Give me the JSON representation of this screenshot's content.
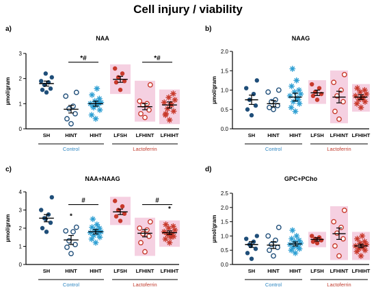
{
  "figure_title": "Cell injury / viability",
  "colors": {
    "sh": "#1f4e79",
    "hint": "#1f4e79",
    "hiht": "#2e9fd3",
    "lfsh": "#c8392b",
    "lfhint": "#c8392b",
    "lfhiht": "#c8392b",
    "pink_bg": "#f5d0e1",
    "control_label": "#2e86c1",
    "lactoferrin_label": "#c0392b"
  },
  "chart_data": [
    {
      "panel": "a)",
      "type": "scatter",
      "title": "NAA",
      "ylabel": "µmol/gram",
      "ylim": [
        0,
        3
      ],
      "yticks": [
        "0",
        "1",
        "2",
        "3"
      ],
      "categories": [
        "SH",
        "HINT",
        "HIHT",
        "LFSH",
        "LFHINT",
        "LFHIHT"
      ],
      "groups": [
        {
          "name": "SH",
          "mean": 1.8,
          "sem": 0.1,
          "points": [
            1.45,
            1.55,
            1.6,
            1.75,
            1.85,
            1.9,
            2.05,
            2.2
          ],
          "marker": "filled-circle",
          "color_key": "sh",
          "bg": false
        },
        {
          "name": "HINT",
          "mean": 0.78,
          "sem": 0.15,
          "points": [
            0.2,
            0.4,
            0.6,
            0.8,
            0.9,
            1.3,
            1.45
          ],
          "marker": "open-circle",
          "color_key": "hint",
          "bg": false
        },
        {
          "name": "HIHT",
          "mean": 1.0,
          "sem": 0.1,
          "points": [
            0.4,
            0.55,
            0.75,
            0.85,
            0.95,
            1.0,
            1.05,
            1.1,
            1.2,
            1.35,
            1.6,
            0.9,
            1.05
          ],
          "marker": "asterisk",
          "color_key": "hiht",
          "bg": false
        },
        {
          "name": "LFSH",
          "mean": 1.97,
          "sem": 0.12,
          "points": [
            1.55,
            1.85,
            1.9,
            2.05,
            2.2,
            2.4
          ],
          "marker": "filled-circle",
          "color_key": "lfsh",
          "bg": true
        },
        {
          "name": "LFHINT",
          "mean": 0.88,
          "sem": 0.12,
          "points": [
            0.45,
            0.6,
            0.75,
            0.95,
            1.0,
            1.1,
            1.75
          ],
          "marker": "open-circle",
          "color_key": "lfhint",
          "bg": true
        },
        {
          "name": "LFHIHT",
          "mean": 0.95,
          "sem": 0.12,
          "points": [
            0.35,
            0.55,
            0.7,
            0.8,
            0.95,
            1.05,
            1.15,
            1.25,
            1.4,
            0.6,
            1.0
          ],
          "marker": "asterisk",
          "color_key": "lfhiht",
          "bg": true
        }
      ],
      "comparison_bars": [
        {
          "from": 1,
          "to": 2,
          "y": 2.65,
          "label": "*#"
        },
        {
          "from": 4,
          "to": 5,
          "y": 2.65,
          "label": "*#"
        }
      ],
      "star_marks": [],
      "group_labels": [
        {
          "text": "Control",
          "from": 0,
          "to": 2,
          "color_key": "control_label"
        },
        {
          "text": "Lactoferrin",
          "from": 3,
          "to": 5,
          "color_key": "lactoferrin_label"
        }
      ]
    },
    {
      "panel": "b)",
      "type": "scatter",
      "title": "NAAG",
      "ylabel": "µmol/gram",
      "ylim": [
        0,
        2
      ],
      "yticks": [
        "0.0",
        "0.5",
        "1.0",
        "1.5",
        "2.0"
      ],
      "categories": [
        "SH",
        "HINT",
        "HIHT",
        "LFSH",
        "LFHINT",
        "LFHIHT"
      ],
      "groups": [
        {
          "name": "SH",
          "mean": 0.75,
          "sem": 0.12,
          "points": [
            0.35,
            0.5,
            0.6,
            0.75,
            0.9,
            1.05,
            1.25
          ],
          "marker": "filled-circle",
          "color_key": "sh",
          "bg": false
        },
        {
          "name": "HINT",
          "mean": 0.65,
          "sem": 0.08,
          "points": [
            0.5,
            0.55,
            0.6,
            0.7,
            0.75,
            0.95,
            1.0
          ],
          "marker": "open-circle",
          "color_key": "hint",
          "bg": false
        },
        {
          "name": "HIHT",
          "mean": 0.82,
          "sem": 0.1,
          "points": [
            0.45,
            0.55,
            0.65,
            0.7,
            0.8,
            0.85,
            0.9,
            0.95,
            1.0,
            1.1,
            1.25,
            1.55,
            0.75
          ],
          "marker": "asterisk",
          "color_key": "hiht",
          "bg": false
        },
        {
          "name": "LFSH",
          "mean": 0.93,
          "sem": 0.07,
          "points": [
            0.75,
            0.85,
            0.9,
            0.95,
            1.05,
            1.15
          ],
          "marker": "filled-circle",
          "color_key": "lfsh",
          "bg": true
        },
        {
          "name": "LFHINT",
          "mean": 0.82,
          "sem": 0.15,
          "points": [
            0.25,
            0.45,
            0.7,
            0.85,
            1.0,
            1.2,
            1.4
          ],
          "marker": "open-circle",
          "color_key": "lfhint",
          "bg": true
        },
        {
          "name": "LFHIHT",
          "mean": 0.82,
          "sem": 0.06,
          "points": [
            0.55,
            0.65,
            0.7,
            0.75,
            0.8,
            0.85,
            0.9,
            0.95,
            1.0,
            1.05,
            0.8
          ],
          "marker": "asterisk",
          "color_key": "lfhiht",
          "bg": true
        }
      ],
      "comparison_bars": [],
      "star_marks": [],
      "group_labels": [
        {
          "text": "Control",
          "from": 0,
          "to": 2,
          "color_key": "control_label"
        },
        {
          "text": "Lactoferrin",
          "from": 3,
          "to": 5,
          "color_key": "lactoferrin_label"
        }
      ]
    },
    {
      "panel": "c)",
      "type": "scatter",
      "title": "NAA+NAAG",
      "ylabel": "µmol/gram",
      "ylim": [
        0,
        4
      ],
      "yticks": [
        "0",
        "1",
        "2",
        "3",
        "4"
      ],
      "categories": [
        "SH",
        "HINT",
        "HIHT",
        "LFSH",
        "LFHINT",
        "LFHIHT"
      ],
      "groups": [
        {
          "name": "SH",
          "mean": 2.55,
          "sem": 0.2,
          "points": [
            1.8,
            2.0,
            2.3,
            2.55,
            2.75,
            3.0,
            3.7,
            2.5
          ],
          "marker": "filled-circle",
          "color_key": "sh",
          "bg": false
        },
        {
          "name": "HINT",
          "mean": 1.35,
          "sem": 0.25,
          "points": [
            0.6,
            0.95,
            1.1,
            1.3,
            1.8,
            1.85,
            2.05
          ],
          "marker": "open-circle",
          "color_key": "hint",
          "bg": false
        },
        {
          "name": "HIHT",
          "mean": 1.8,
          "sem": 0.12,
          "points": [
            1.2,
            1.4,
            1.5,
            1.6,
            1.7,
            1.75,
            1.8,
            1.9,
            2.0,
            2.05,
            2.2,
            2.5,
            1.85
          ],
          "marker": "asterisk",
          "color_key": "hiht",
          "bg": false
        },
        {
          "name": "LFSH",
          "mean": 2.9,
          "sem": 0.15,
          "points": [
            2.4,
            2.65,
            2.8,
            3.0,
            3.2,
            3.5
          ],
          "marker": "filled-circle",
          "color_key": "lfsh",
          "bg": true
        },
        {
          "name": "LFHINT",
          "mean": 1.72,
          "sem": 0.2,
          "points": [
            0.7,
            1.2,
            1.55,
            1.7,
            1.9,
            2.0,
            2.35
          ],
          "marker": "open-circle",
          "color_key": "lfhint",
          "bg": true
        },
        {
          "name": "LFHIHT",
          "mean": 1.75,
          "sem": 0.1,
          "points": [
            1.2,
            1.4,
            1.55,
            1.65,
            1.7,
            1.8,
            1.9,
            2.0,
            2.1,
            2.2,
            1.5
          ],
          "marker": "asterisk",
          "color_key": "lfhiht",
          "bg": true
        }
      ],
      "comparison_bars": [
        {
          "from": 1,
          "to": 2,
          "y": 3.3,
          "label": "#"
        },
        {
          "from": 4,
          "to": 5,
          "y": 3.3,
          "label": "#"
        }
      ],
      "star_marks": [
        {
          "index": 1,
          "y": 2.55,
          "label": "*"
        },
        {
          "index": 5,
          "y": 2.95,
          "label": "*"
        }
      ],
      "group_labels": [
        {
          "text": "Control",
          "from": 0,
          "to": 2,
          "color_key": "control_label"
        },
        {
          "text": "Lactoferrin",
          "from": 3,
          "to": 5,
          "color_key": "lactoferrin_label"
        }
      ]
    },
    {
      "panel": "d)",
      "type": "scatter",
      "title": "GPC+PCho",
      "ylabel": "µmol/gram",
      "ylim": [
        0,
        2.5
      ],
      "yticks": [
        "0.0",
        "0.5",
        "1.0",
        "1.5",
        "2.0",
        "2.5"
      ],
      "categories": [
        "SH",
        "HINT",
        "HIHT",
        "LFSH",
        "LFHINT",
        "LFHIHT"
      ],
      "groups": [
        {
          "name": "SH",
          "mean": 0.7,
          "sem": 0.1,
          "points": [
            0.2,
            0.4,
            0.55,
            0.7,
            0.8,
            0.9,
            1.0,
            0.65
          ],
          "marker": "filled-circle",
          "color_key": "sh",
          "bg": false
        },
        {
          "name": "HINT",
          "mean": 0.68,
          "sem": 0.12,
          "points": [
            0.3,
            0.5,
            0.6,
            0.7,
            0.85,
            1.0,
            1.3
          ],
          "marker": "open-circle",
          "color_key": "hint",
          "bg": false
        },
        {
          "name": "HIHT",
          "mean": 0.72,
          "sem": 0.07,
          "points": [
            0.4,
            0.5,
            0.55,
            0.6,
            0.65,
            0.7,
            0.75,
            0.8,
            0.85,
            0.9,
            1.0,
            1.2,
            0.6
          ],
          "marker": "asterisk",
          "color_key": "hiht",
          "bg": false
        },
        {
          "name": "LFSH",
          "mean": 0.88,
          "sem": 0.06,
          "points": [
            0.75,
            0.8,
            0.85,
            0.9,
            0.95,
            1.0
          ],
          "marker": "filled-circle",
          "color_key": "lfsh",
          "bg": true
        },
        {
          "name": "LFHINT",
          "mean": 1.08,
          "sem": 0.2,
          "points": [
            0.3,
            0.65,
            0.9,
            1.1,
            1.3,
            1.5,
            1.9
          ],
          "marker": "open-circle",
          "color_key": "lfhint",
          "bg": true
        },
        {
          "name": "LFHIHT",
          "mean": 0.65,
          "sem": 0.06,
          "points": [
            0.3,
            0.45,
            0.5,
            0.55,
            0.6,
            0.65,
            0.7,
            0.75,
            0.8,
            0.9,
            1.0
          ],
          "marker": "asterisk",
          "color_key": "lfhiht",
          "bg": true
        }
      ],
      "comparison_bars": [],
      "star_marks": [],
      "group_labels": [
        {
          "text": "Control",
          "from": 0,
          "to": 2,
          "color_key": "control_label"
        },
        {
          "text": "Lactoferrin",
          "from": 3,
          "to": 5,
          "color_key": "lactoferrin_label"
        }
      ]
    }
  ]
}
